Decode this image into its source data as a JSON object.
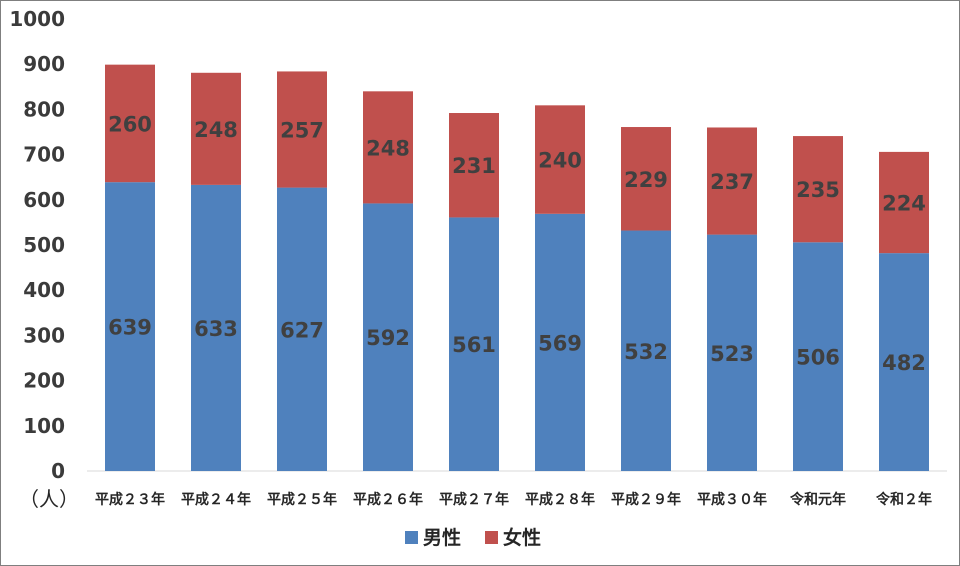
{
  "chart_data": {
    "type": "bar",
    "stacked": true,
    "categories": [
      "平成２３年",
      "平成２４年",
      "平成２５年",
      "平成２６年",
      "平成２７年",
      "平成２８年",
      "平成２９年",
      "平成３０年",
      "令和元年",
      "令和２年"
    ],
    "series": [
      {
        "name": "男性",
        "color": "#4f81bd",
        "values": [
          639,
          633,
          627,
          592,
          561,
          569,
          532,
          523,
          506,
          482
        ]
      },
      {
        "name": "女性",
        "color": "#c0504d",
        "values": [
          260,
          248,
          257,
          248,
          231,
          240,
          229,
          237,
          235,
          224
        ]
      }
    ],
    "y_unit": "（人）",
    "ylim": [
      0,
      1000
    ],
    "yticks": [
      0,
      100,
      200,
      300,
      400,
      500,
      600,
      700,
      800,
      900,
      1000
    ],
    "grid": false,
    "legend_position": "bottom"
  }
}
